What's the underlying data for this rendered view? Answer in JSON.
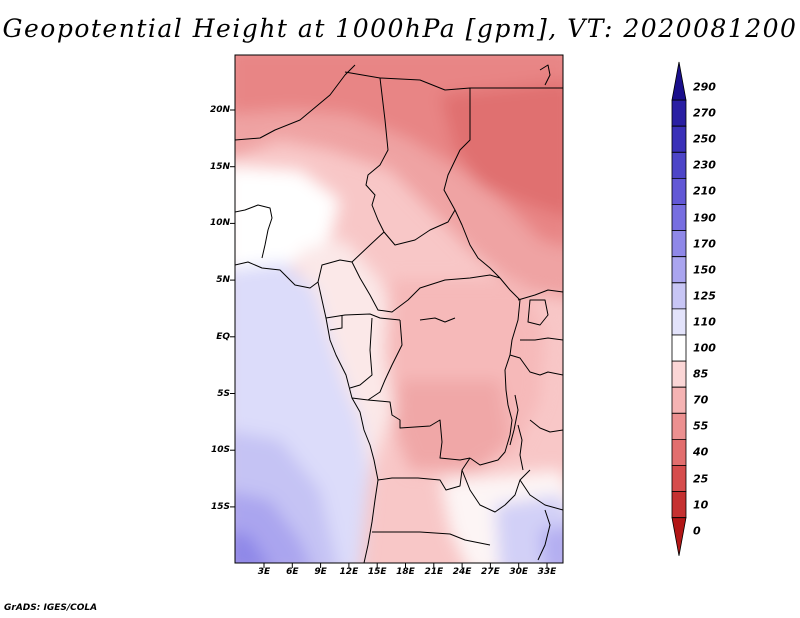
{
  "title": "Geopotential Height at 1000hPa [gpm], VT: 2020081200",
  "credit": "GrADS: IGES/COLA",
  "map": {
    "region": "Central Africa",
    "lat_labels": [
      "20N",
      "15N",
      "10N",
      "5N",
      "EQ",
      "5S",
      "10S",
      "15S"
    ],
    "lon_labels": [
      "3E",
      "6E",
      "9E",
      "12E",
      "15E",
      "18E",
      "21E",
      "24E",
      "27E",
      "30E",
      "33E"
    ]
  },
  "colorbar": {
    "levels": [
      "290",
      "270",
      "250",
      "230",
      "210",
      "190",
      "170",
      "150",
      "125",
      "110",
      "100",
      "85",
      "70",
      "55",
      "40",
      "25",
      "10",
      "0"
    ],
    "colors": [
      "#1a0f8c",
      "#2a1fa3",
      "#3a30b8",
      "#4d45c8",
      "#6258d6",
      "#776ee0",
      "#8f88e8",
      "#aaa5ef",
      "#c8c6f5",
      "#e3e3fb",
      "#ffffff",
      "#fbd6d6",
      "#f5b3b3",
      "#ec9090",
      "#e26e6e",
      "#d64d4d",
      "#c53131",
      "#b21616"
    ]
  },
  "colors": {
    "frame": "#000000",
    "border": "#000000"
  }
}
